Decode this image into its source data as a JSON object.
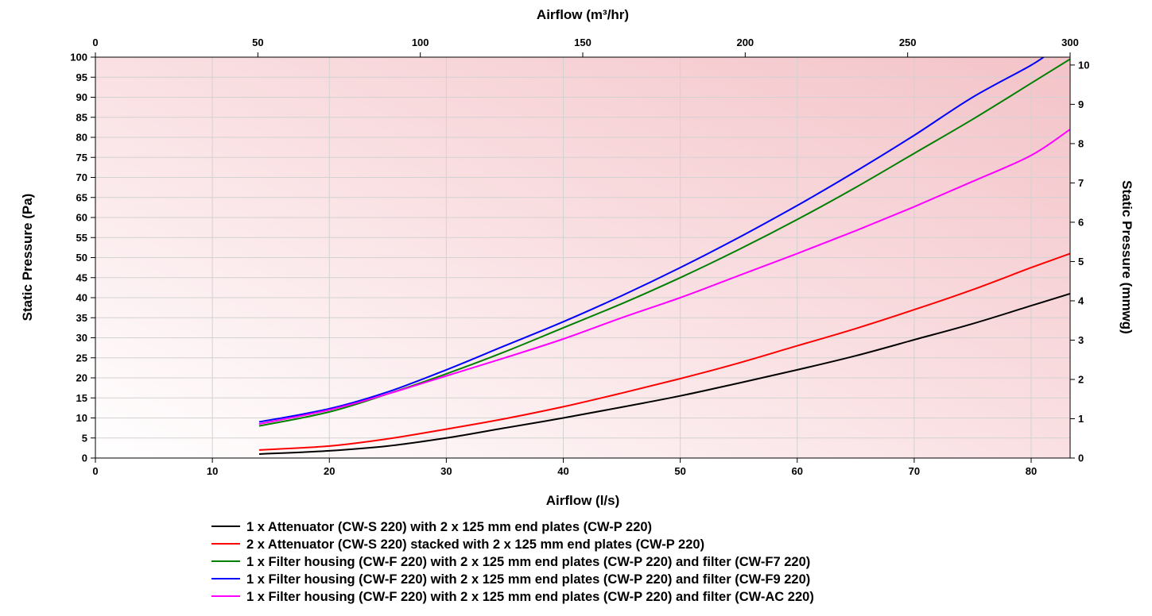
{
  "chart_data": {
    "type": "line",
    "x_bottom": {
      "label": "Airflow (l/s)",
      "range": [
        0,
        83.33
      ],
      "ticks": [
        0,
        10,
        20,
        30,
        40,
        50,
        60,
        70,
        80
      ]
    },
    "x_top": {
      "label": "Airflow (m³/hr)",
      "range": [
        0,
        300
      ],
      "ticks": [
        0,
        50,
        100,
        150,
        200,
        250,
        300
      ]
    },
    "y_left": {
      "label": "Static Pressure (Pa)",
      "range": [
        0,
        100
      ],
      "ticks": [
        0,
        5,
        10,
        15,
        20,
        25,
        30,
        35,
        40,
        45,
        50,
        55,
        60,
        65,
        70,
        75,
        80,
        85,
        90,
        95,
        100
      ]
    },
    "y_right": {
      "label": "Static Pressure (mmwg)",
      "range": [
        0,
        10.2
      ],
      "ticks": [
        0,
        1,
        2,
        3,
        4,
        5,
        6,
        7,
        8,
        9,
        10
      ]
    },
    "grid": true,
    "legend_placement": "bottom",
    "series": [
      {
        "name": "1 x Attenuator (CW-S 220) with 2 x 125 mm end plates (CW-P 220)",
        "color": "#000000",
        "x": [
          14,
          20,
          25,
          30,
          35,
          40,
          45,
          50,
          55,
          60,
          65,
          70,
          75,
          80,
          83.33
        ],
        "y": [
          1,
          1.8,
          3.0,
          5.0,
          7.5,
          10.0,
          12.7,
          15.5,
          18.7,
          22.0,
          25.5,
          29.5,
          33.5,
          38.0,
          41.0
        ]
      },
      {
        "name": "2 x Attenuator (CW-S 220) stacked with 2 x 125 mm end plates (CW-P 220)",
        "color": "#ff0000",
        "x": [
          14,
          20,
          25,
          30,
          35,
          40,
          45,
          50,
          55,
          60,
          65,
          70,
          75,
          80,
          83.33
        ],
        "y": [
          2,
          3.0,
          4.8,
          7.2,
          9.8,
          12.8,
          16.2,
          19.8,
          23.7,
          28.0,
          32.3,
          37.0,
          42.0,
          47.5,
          51.0
        ]
      },
      {
        "name": "1 x Filter housing (CW-F 220) with 2 x 125 mm end plates (CW-P 220) and filter (CW-F7 220)",
        "color": "#008000",
        "x": [
          14,
          20,
          25,
          30,
          35,
          40,
          45,
          50,
          55,
          60,
          65,
          70,
          75,
          80,
          83.33
        ],
        "y": [
          8,
          11.5,
          16.0,
          21.0,
          26.5,
          32.5,
          38.5,
          45.0,
          52.0,
          59.5,
          67.5,
          76.0,
          84.5,
          93.5,
          99.5
        ]
      },
      {
        "name": "1 x Filter housing (CW-F 220) with 2 x 125 mm end plates (CW-P 220) and filter (CW-F9 220)",
        "color": "#0000ff",
        "x": [
          14,
          20,
          25,
          30,
          35,
          40,
          45,
          50,
          55,
          60,
          65,
          70,
          75,
          80,
          81.5
        ],
        "y": [
          9,
          12.3,
          16.5,
          22.0,
          28.0,
          34.0,
          40.5,
          47.5,
          55.0,
          63.0,
          71.5,
          80.5,
          90.0,
          98.0,
          101
        ]
      },
      {
        "name": "1 x Filter housing (CW-F 220) with 2 x 125 mm end plates (CW-P 220) and filter (CW-AC 220)",
        "color": "#ff00ff",
        "x": [
          14,
          20,
          25,
          30,
          35,
          40,
          45,
          50,
          55,
          60,
          65,
          70,
          75,
          80,
          83.33
        ],
        "y": [
          8.5,
          12.0,
          16.0,
          20.5,
          25.0,
          29.7,
          35.0,
          40.0,
          45.5,
          51.0,
          56.7,
          62.7,
          69.0,
          75.5,
          82.0
        ]
      }
    ]
  }
}
